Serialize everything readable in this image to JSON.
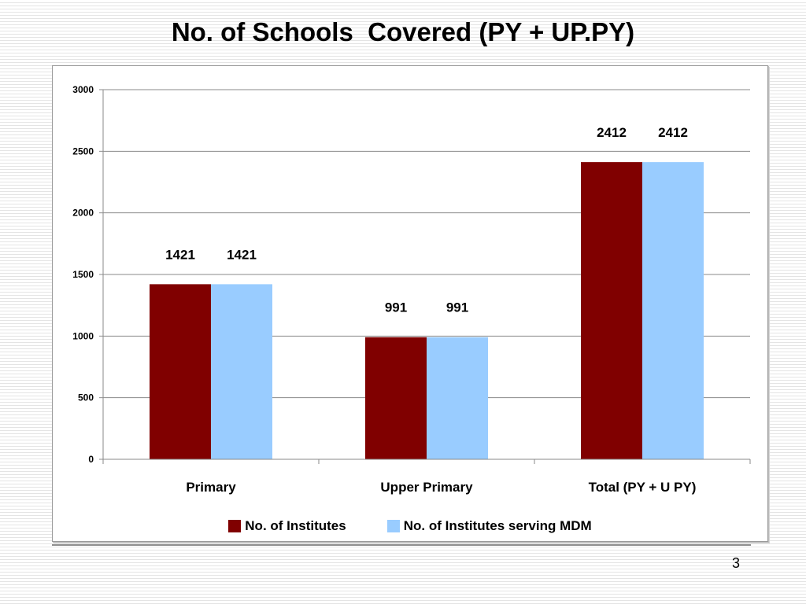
{
  "slide": {
    "title": "No. of Schools  Covered (PY + UP.PY)",
    "page_number": "3"
  },
  "chart_data": {
    "type": "bar",
    "title": "No. of Schools  Covered (PY + UP.PY)",
    "xlabel": "",
    "ylabel": "",
    "ylim": [
      0,
      3000
    ],
    "yticks": [
      0,
      500,
      1000,
      1500,
      2000,
      2500,
      3000
    ],
    "grid": true,
    "legend_position": "bottom",
    "categories": [
      "Primary",
      "Upper Primary",
      "Total (PY + U PY)"
    ],
    "series": [
      {
        "name": "No. of Institutes",
        "values": [
          1421,
          991,
          2412
        ],
        "color": "#800000"
      },
      {
        "name": "No. of Institutes serving MDM",
        "values": [
          1421,
          991,
          2412
        ],
        "color": "#99ccff"
      }
    ]
  }
}
